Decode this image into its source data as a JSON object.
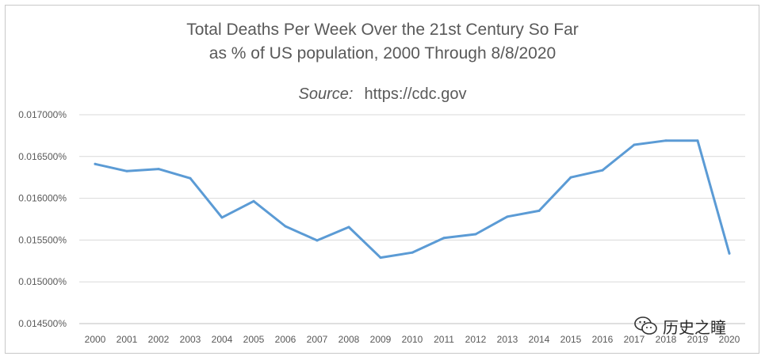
{
  "chart_data": {
    "type": "line",
    "title": "Total Deaths Per Week Over the 21st Century So Far",
    "subtitle": "as % of US population, 2000 Through 8/8/2020",
    "source_label": "Source:",
    "source_url": "https://cdc.gov",
    "xlabel": "",
    "ylabel": "",
    "x": [
      "2000",
      "2001",
      "2002",
      "2003",
      "2004",
      "2005",
      "2006",
      "2007",
      "2008",
      "2009",
      "2010",
      "2011",
      "2012",
      "2013",
      "2014",
      "2015",
      "2016",
      "2017",
      "2018",
      "2019",
      "2020"
    ],
    "series": [
      {
        "values": [
          0.01641,
          0.016325,
          0.01635,
          0.01624,
          0.01577,
          0.015965,
          0.015665,
          0.015495,
          0.015655,
          0.01529,
          0.01535,
          0.015525,
          0.01557,
          0.01578,
          0.01585,
          0.01625,
          0.016335,
          0.01664,
          0.01669,
          0.01669,
          0.01534
        ],
        "color": "#5b9bd5"
      }
    ],
    "yticks": [
      "0.014500%",
      "0.015000%",
      "0.015500%",
      "0.016000%",
      "0.016500%",
      "0.017000%"
    ],
    "ylim": [
      0.0145,
      0.017
    ],
    "grid": true,
    "legend": "none"
  },
  "watermark": {
    "text": "历史之瞳",
    "icon": "wechat-icon"
  }
}
